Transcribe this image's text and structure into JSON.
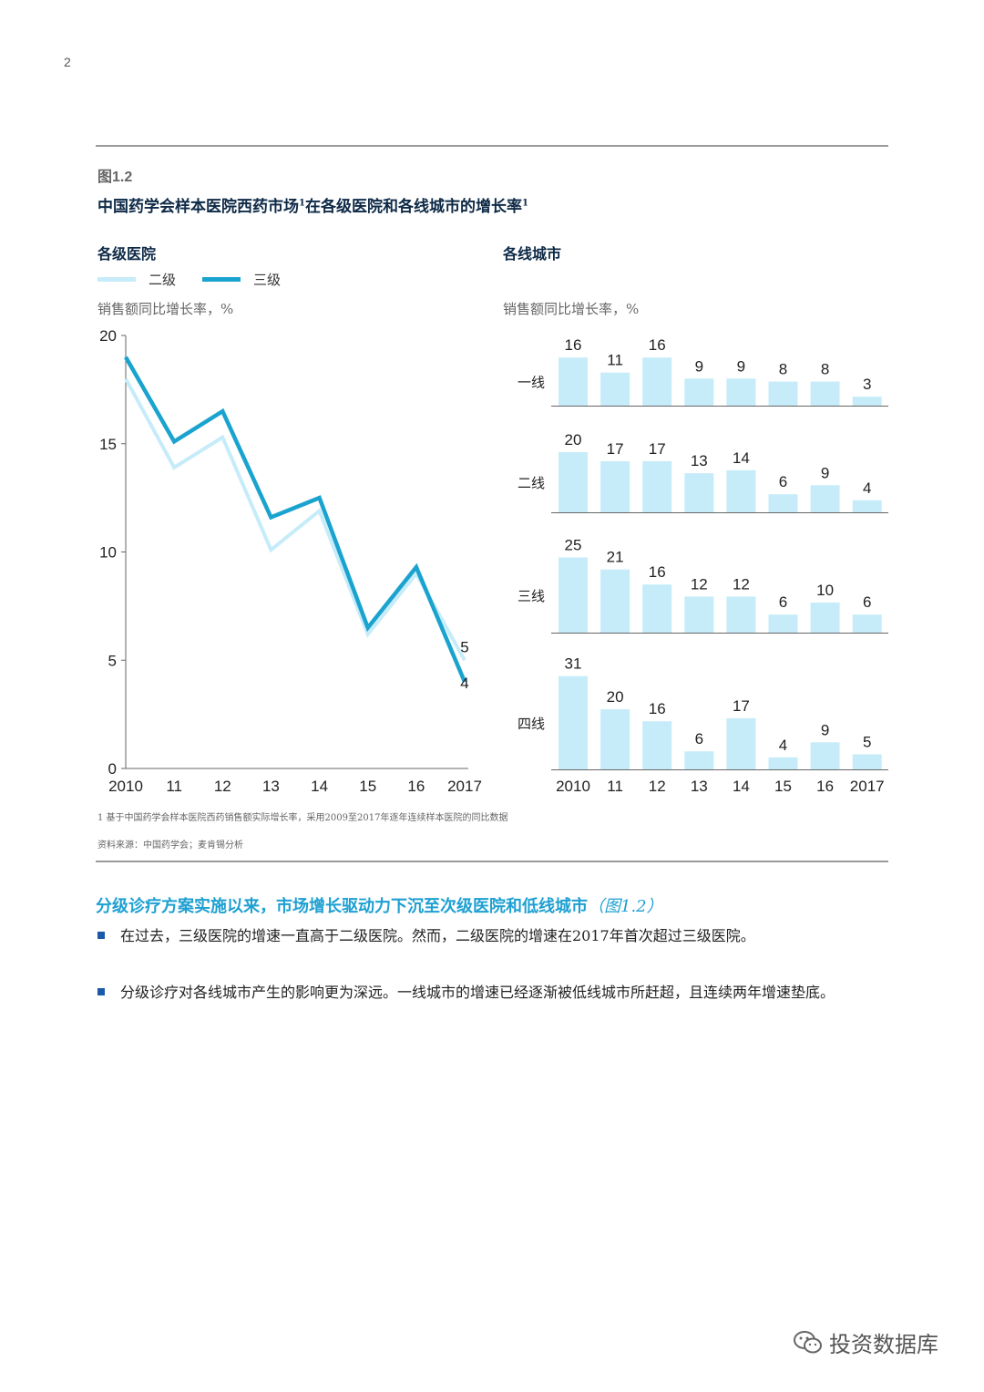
{
  "page_number": "2",
  "figure": {
    "label": "图1.2",
    "title": "中国药学会样本医院西药市场",
    "title_mid": "在各级医院和各线城市的增长率",
    "title_sup1": "1",
    "title_sup2": "1"
  },
  "left_panel": {
    "title": "各级医院",
    "legend": [
      {
        "label": "二级",
        "color": "#c6ecf9"
      },
      {
        "label": "三级",
        "color": "#1ba3cf"
      }
    ],
    "unit": "销售额同比增长率，%"
  },
  "right_panel": {
    "title": "各线城市",
    "unit": "销售额同比增长率，%"
  },
  "chart_data": [
    {
      "type": "line",
      "x": [
        "2010",
        "11",
        "12",
        "13",
        "14",
        "15",
        "16",
        "2017"
      ],
      "series": [
        {
          "name": "二级",
          "color": "#c6ecf9",
          "values": [
            18.0,
            13.9,
            15.3,
            10.1,
            11.9,
            6.2,
            9.0,
            5
          ]
        },
        {
          "name": "三级",
          "color": "#1ba3cf",
          "values": [
            19.0,
            15.1,
            16.5,
            11.6,
            12.5,
            6.5,
            9.3,
            4
          ]
        }
      ],
      "end_labels": [
        "5",
        "4"
      ],
      "yticks": [
        "0",
        "5",
        "10",
        "15",
        "20"
      ],
      "ylim": [
        0,
        20
      ],
      "grid": false
    },
    {
      "type": "bar",
      "categories": [
        "2010",
        "11",
        "12",
        "13",
        "14",
        "15",
        "16",
        "2017"
      ],
      "bar_color": "#c6ecf9",
      "panels": [
        {
          "label": "一线",
          "values": [
            16,
            11,
            16,
            9,
            9,
            8,
            8,
            3
          ]
        },
        {
          "label": "二线",
          "values": [
            20,
            17,
            17,
            13,
            14,
            6,
            9,
            4
          ]
        },
        {
          "label": "三线",
          "values": [
            25,
            21,
            16,
            12,
            12,
            6,
            10,
            6
          ]
        },
        {
          "label": "四线",
          "values": [
            31,
            20,
            16,
            6,
            17,
            4,
            9,
            5
          ]
        }
      ]
    }
  ],
  "footnotes": {
    "note1": "1 基于中国药学会样本医院西药销售额实际增长率，采用2009至2017年逐年连续样本医院的同比数据",
    "source": "资料来源：中国药学会；麦肯锡分析"
  },
  "section": {
    "heading": "分级诊疗方案实施以来，市场增长驱动力下沉至次级医院和低线城市",
    "heading_ref": "（图1.2）",
    "bullets": [
      "在过去，三级医院的增速一直高于二级医院。然而，二级医院的增速在2017年首次超过三级医院。",
      "分级诊疗对各线城市产生的影响更为深远。一线城市的增速已经逐渐被低线城市所赶超，且连续两年增速垫底。"
    ]
  },
  "watermark": "投资数据库"
}
